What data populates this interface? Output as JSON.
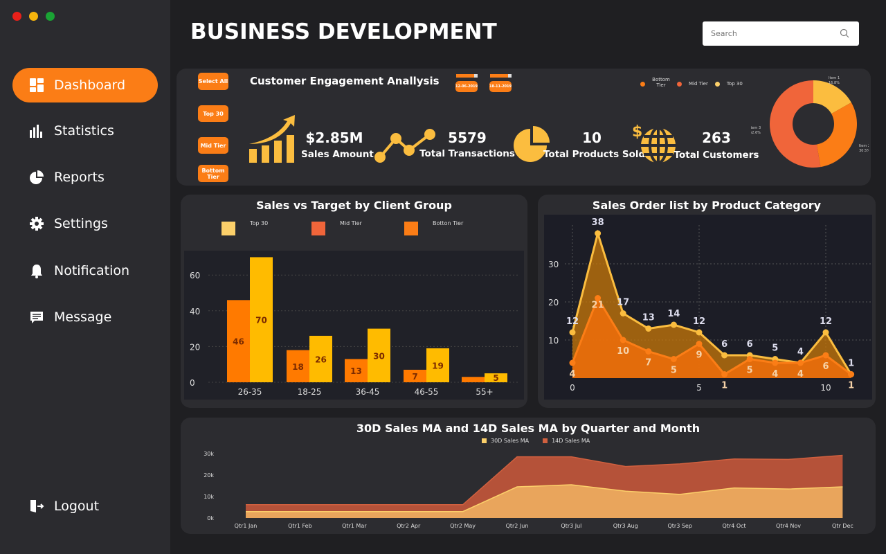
{
  "window": {
    "controls": [
      "close",
      "minimize",
      "maximize"
    ]
  },
  "header": {
    "title": "BUSINESS DEVELOPMENT",
    "search_placeholder": "Search"
  },
  "sidebar": {
    "items": [
      {
        "label": "Dashboard",
        "icon": "dashboard-icon",
        "active": true
      },
      {
        "label": "Statistics",
        "icon": "bar-chart-icon"
      },
      {
        "label": "Reports",
        "icon": "pie-chart-icon"
      },
      {
        "label": "Settings",
        "icon": "gear-icon"
      },
      {
        "label": "Notification",
        "icon": "bell-icon"
      },
      {
        "label": "Message",
        "icon": "message-icon"
      }
    ],
    "logout": "Logout"
  },
  "engagement": {
    "title": "Customer Engagement Anallysis",
    "filters": [
      "Select All",
      "Top 30",
      "Mid Tier",
      "Bottom Tier"
    ],
    "date_start": "12-06-2019",
    "date_end": "18-11-2019",
    "kpis": [
      {
        "value": "$2.85M",
        "label": "Sales Amount",
        "icon": "growth-chart-icon"
      },
      {
        "value": "5579",
        "label": "Total Transactions",
        "icon": "line-nodes-icon"
      },
      {
        "value": "10",
        "label": "Total Products Sold",
        "icon": "pie-chart-icon"
      },
      {
        "value": "263",
        "label": "Total Customers",
        "icon": "globe-dollar-icon"
      }
    ],
    "legend": [
      "Bottom Tier",
      "Mid Tier",
      "Top 30"
    ],
    "donut": {
      "type": "pie",
      "slices": [
        {
          "label": "Item 1",
          "value": 16.8,
          "pct": "16.8%",
          "color": "#fbbd3f"
        },
        {
          "label": "Item 2",
          "value": 30.5,
          "pct": "30.5%",
          "color": "#fb7d16"
        },
        {
          "label": "Item 3",
          "value": 52.6,
          "pct": "52.6%",
          "color": "#f0653a"
        }
      ]
    }
  },
  "colors": {
    "accent": "#fb7d16",
    "yellow": "#ffbb00",
    "mid": "#f0653a",
    "light": "#fcd06a"
  },
  "chart_data": [
    {
      "type": "bar",
      "title": "Sales vs Target by Client Group",
      "legend": [
        "Top 30",
        "Mid Tier",
        "Botton Tier"
      ],
      "categories": [
        "26-35",
        "18-25",
        "36-45",
        "46-55",
        "55+"
      ],
      "series": [
        {
          "values": [
            46,
            18,
            13,
            7,
            3
          ],
          "color": "#ff7a00"
        },
        {
          "values": [
            70,
            26,
            30,
            19,
            5
          ],
          "color": "#ffbb00"
        }
      ],
      "yticks": [
        0,
        20,
        40,
        60
      ],
      "ylim": [
        0,
        72
      ],
      "grid": true
    },
    {
      "type": "area",
      "title": "Sales Order list by Product Category",
      "x": [
        0,
        1,
        2,
        3,
        4,
        5,
        6,
        7,
        8,
        9,
        10,
        11
      ],
      "series": [
        {
          "values": [
            12,
            38,
            17,
            13,
            14,
            12,
            6,
            6,
            5,
            4,
            12,
            1
          ],
          "color": "#fbbd3f"
        },
        {
          "values": [
            4,
            21,
            10,
            7,
            5,
            9,
            1,
            5,
            4,
            4,
            6,
            1
          ],
          "color": "#fb7d16"
        }
      ],
      "xticks": [
        0,
        5,
        10
      ],
      "yticks": [
        10,
        20,
        30
      ],
      "ylim": [
        0,
        40
      ],
      "grid": true
    },
    {
      "type": "area",
      "stacked": true,
      "title": "30D Sales MA and 14D Sales MA by Quarter and Month",
      "categories": [
        "Qtr1 Jan",
        "Qtr1 Feb",
        "Qtr1 Mar",
        "Qtr2 Apr",
        "Qtr2 May",
        "Qtr2 Jun",
        "Qtr3 Jul",
        "Qtr3 Aug",
        "Qtr3 Sep",
        "Qtr4 Oct",
        "Qtr4 Nov",
        "Qtr Dec"
      ],
      "series": [
        {
          "name": "30D Sales MA",
          "values": [
            3000,
            3000,
            3000,
            3000,
            3000,
            14500,
            15500,
            12500,
            11000,
            14000,
            13500,
            14500
          ],
          "color": "#e9a55c"
        },
        {
          "name": "14D Sales MA",
          "values": [
            3200,
            3200,
            3200,
            3200,
            3200,
            14000,
            13000,
            11500,
            14200,
            13500,
            13800,
            14700
          ],
          "color": "#b55239"
        }
      ],
      "yticks": [
        "0k",
        "10k",
        "20k",
        "30k"
      ],
      "ylim": [
        0,
        30000
      ],
      "legend": "top-center"
    }
  ]
}
